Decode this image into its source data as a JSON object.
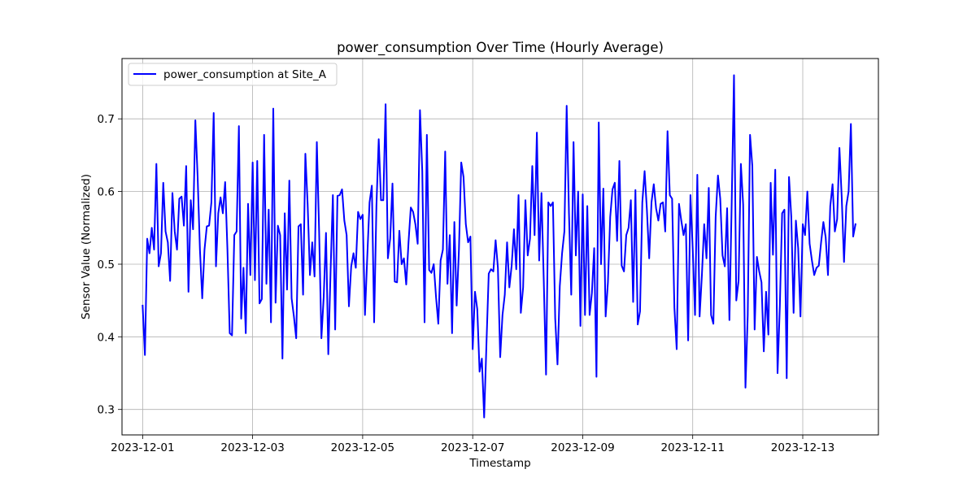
{
  "chart_data": {
    "type": "line",
    "title": "power_consumption Over Time (Hourly Average)",
    "xlabel": "Timestamp",
    "ylabel": "Sensor Value (Normalized)",
    "grid": true,
    "legend_position": "top-left",
    "x_start": "2023-12-01T00:00",
    "x_step_hours": 1,
    "xlim": [
      "2023-11-30T15:00",
      "2023-12-14T09:00"
    ],
    "ylim": [
      0.265,
      0.783
    ],
    "xticks": [
      {
        "date": "2023-12-01",
        "label": "2023-12-01"
      },
      {
        "date": "2023-12-03",
        "label": "2023-12-03"
      },
      {
        "date": "2023-12-05",
        "label": "2023-12-05"
      },
      {
        "date": "2023-12-07",
        "label": "2023-12-07"
      },
      {
        "date": "2023-12-09",
        "label": "2023-12-09"
      },
      {
        "date": "2023-12-11",
        "label": "2023-12-11"
      },
      {
        "date": "2023-12-13",
        "label": "2023-12-13"
      }
    ],
    "yticks": [
      {
        "value": 0.3,
        "label": "0.3"
      },
      {
        "value": 0.4,
        "label": "0.4"
      },
      {
        "value": 0.5,
        "label": "0.5"
      },
      {
        "value": 0.6,
        "label": "0.6"
      },
      {
        "value": 0.7,
        "label": "0.7"
      }
    ],
    "series": [
      {
        "name": "power_consumption at Site_A",
        "color": "#0000ff",
        "values": [
          0.443,
          0.375,
          0.535,
          0.515,
          0.55,
          0.52,
          0.638,
          0.497,
          0.515,
          0.612,
          0.545,
          0.53,
          0.477,
          0.598,
          0.545,
          0.52,
          0.59,
          0.593,
          0.553,
          0.635,
          0.462,
          0.588,
          0.548,
          0.698,
          0.62,
          0.52,
          0.453,
          0.52,
          0.552,
          0.553,
          0.585,
          0.708,
          0.497,
          0.57,
          0.592,
          0.57,
          0.613,
          0.52,
          0.405,
          0.402,
          0.54,
          0.545,
          0.69,
          0.425,
          0.495,
          0.405,
          0.583,
          0.485,
          0.64,
          0.478,
          0.642,
          0.446,
          0.452,
          0.678,
          0.473,
          0.575,
          0.42,
          0.714,
          0.447,
          0.553,
          0.54,
          0.37,
          0.57,
          0.465,
          0.615,
          0.453,
          0.428,
          0.398,
          0.552,
          0.555,
          0.458,
          0.652,
          0.582,
          0.485,
          0.53,
          0.483,
          0.668,
          0.545,
          0.398,
          0.455,
          0.543,
          0.376,
          0.49,
          0.595,
          0.41,
          0.594,
          0.595,
          0.603,
          0.56,
          0.54,
          0.442,
          0.497,
          0.515,
          0.495,
          0.572,
          0.562,
          0.568,
          0.43,
          0.51,
          0.585,
          0.608,
          0.42,
          0.58,
          0.672,
          0.588,
          0.588,
          0.72,
          0.508,
          0.535,
          0.611,
          0.476,
          0.475,
          0.546,
          0.5,
          0.508,
          0.472,
          0.53,
          0.578,
          0.572,
          0.555,
          0.528,
          0.712,
          0.628,
          0.42,
          0.678,
          0.492,
          0.488,
          0.5,
          0.455,
          0.418,
          0.505,
          0.52,
          0.655,
          0.473,
          0.54,
          0.405,
          0.558,
          0.443,
          0.52,
          0.64,
          0.62,
          0.555,
          0.53,
          0.538,
          0.383,
          0.462,
          0.438,
          0.352,
          0.37,
          0.289,
          0.39,
          0.487,
          0.493,
          0.49,
          0.533,
          0.495,
          0.372,
          0.43,
          0.458,
          0.53,
          0.468,
          0.498,
          0.548,
          0.493,
          0.595,
          0.433,
          0.468,
          0.588,
          0.512,
          0.535,
          0.635,
          0.54,
          0.681,
          0.505,
          0.598,
          0.478,
          0.348,
          0.585,
          0.58,
          0.585,
          0.425,
          0.362,
          0.47,
          0.515,
          0.545,
          0.718,
          0.57,
          0.458,
          0.668,
          0.512,
          0.6,
          0.415,
          0.596,
          0.43,
          0.58,
          0.43,
          0.46,
          0.522,
          0.345,
          0.695,
          0.5,
          0.604,
          0.428,
          0.475,
          0.565,
          0.603,
          0.612,
          0.532,
          0.642,
          0.498,
          0.49,
          0.54,
          0.55,
          0.588,
          0.448,
          0.602,
          0.417,
          0.435,
          0.585,
          0.628,
          0.575,
          0.508,
          0.585,
          0.61,
          0.577,
          0.56,
          0.583,
          0.585,
          0.545,
          0.683,
          0.595,
          0.59,
          0.44,
          0.383,
          0.583,
          0.56,
          0.54,
          0.555,
          0.395,
          0.595,
          0.52,
          0.43,
          0.623,
          0.428,
          0.485,
          0.555,
          0.508,
          0.605,
          0.43,
          0.418,
          0.565,
          0.622,
          0.59,
          0.512,
          0.497,
          0.577,
          0.423,
          0.585,
          0.76,
          0.45,
          0.477,
          0.638,
          0.582,
          0.33,
          0.43,
          0.678,
          0.635,
          0.41,
          0.51,
          0.49,
          0.475,
          0.38,
          0.462,
          0.403,
          0.612,
          0.513,
          0.63,
          0.35,
          0.442,
          0.57,
          0.575,
          0.343,
          0.62,
          0.565,
          0.433,
          0.56,
          0.522,
          0.428,
          0.555,
          0.54,
          0.6,
          0.528,
          0.505,
          0.485,
          0.495,
          0.498,
          0.53,
          0.558,
          0.537,
          0.485,
          0.58,
          0.61,
          0.545,
          0.562,
          0.66,
          0.592,
          0.503,
          0.58,
          0.6,
          0.693,
          0.538,
          0.555
        ]
      }
    ]
  }
}
